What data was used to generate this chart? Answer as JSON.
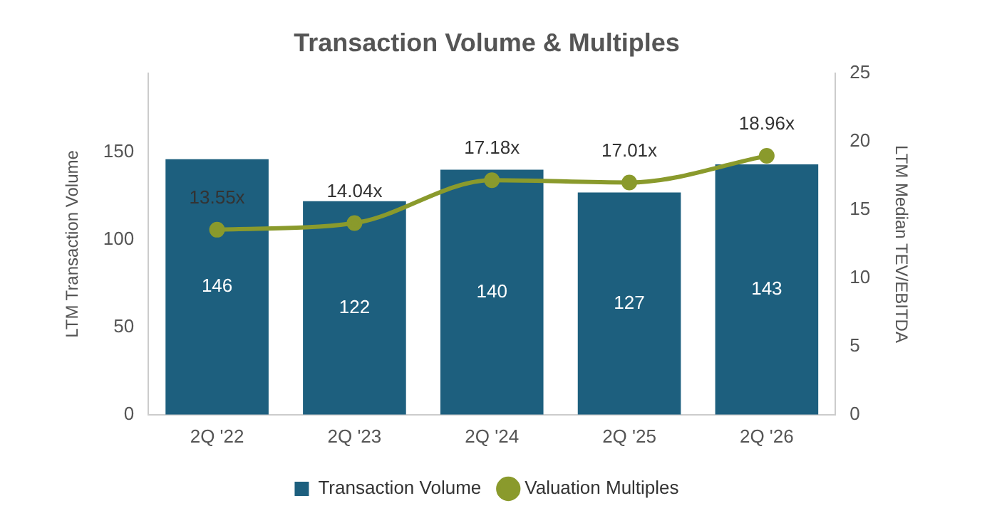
{
  "chart_data": {
    "type": "bar",
    "title": "Transaction Volume & Multiples",
    "ylabel": "LTM Transaction Volume",
    "y2label": "LTM Median TEV/EBITDA",
    "categories": [
      "2Q '22",
      "2Q '23",
      "2Q '24",
      "2Q '25",
      "2Q '26"
    ],
    "series": [
      {
        "name": "Transaction Volume",
        "color": "#1d5f7e",
        "values": [
          146,
          122,
          140,
          127,
          143
        ],
        "data_labels": true
      },
      {
        "name": "Valuation Multiples",
        "type": "line",
        "axis": "y2",
        "color": "#8a9a2c",
        "values": [
          13.55,
          14.04,
          17.18,
          17.01,
          18.96
        ],
        "value_labels": [
          "13.55x",
          "14.04x",
          "17.18x",
          "17.01x",
          "18.96x"
        ],
        "marker": "circle"
      }
    ],
    "ylim": [
      0,
      195
    ],
    "yticks": [
      0,
      50,
      100,
      150
    ],
    "y2lim": [
      0,
      25
    ],
    "y2ticks": [
      0,
      5,
      10,
      15,
      20,
      25
    ],
    "grid": false,
    "legend": "bottom"
  }
}
